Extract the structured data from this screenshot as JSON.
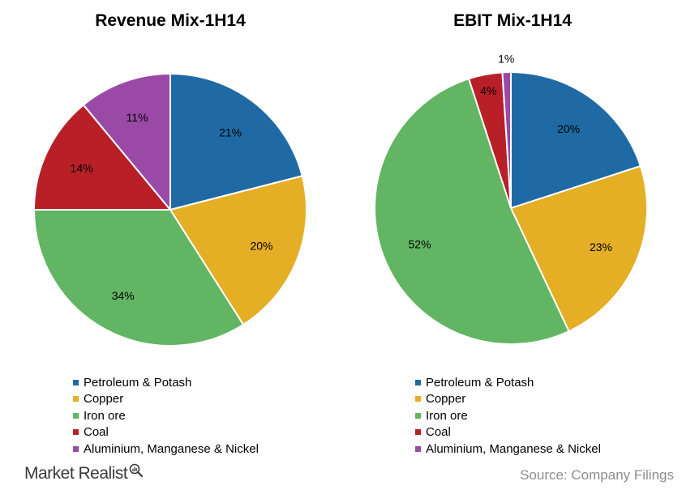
{
  "chart_data": [
    {
      "type": "pie",
      "title": "Revenue Mix-1H14",
      "categories": [
        "Petroleum & Potash",
        "Copper",
        "Iron ore",
        "Coal",
        "Aluminium, Manganese & Nickel"
      ],
      "values": [
        21,
        20,
        34,
        14,
        11
      ],
      "labels": [
        "21%",
        "20%",
        "34%",
        "14%",
        "11%"
      ],
      "colors": [
        "#1f6aa5",
        "#e4ae25",
        "#62b562",
        "#b81f27",
        "#9b49a6"
      ],
      "legend": "bottom"
    },
    {
      "type": "pie",
      "title": "EBIT Mix-1H14",
      "categories": [
        "Petroleum & Potash",
        "Copper",
        "Iron ore",
        "Coal",
        "Aluminium, Manganese & Nickel"
      ],
      "values": [
        20,
        23,
        52,
        4,
        1
      ],
      "labels": [
        "20%",
        "23%",
        "52%",
        "4%",
        "1%"
      ],
      "colors": [
        "#1f6aa5",
        "#e4ae25",
        "#62b562",
        "#b81f27",
        "#9b49a6"
      ],
      "legend": "bottom"
    }
  ],
  "footer": {
    "brand": "Market Realist",
    "brand_icon": "magnifier-chart-icon",
    "source": "Source: Company Filings"
  }
}
